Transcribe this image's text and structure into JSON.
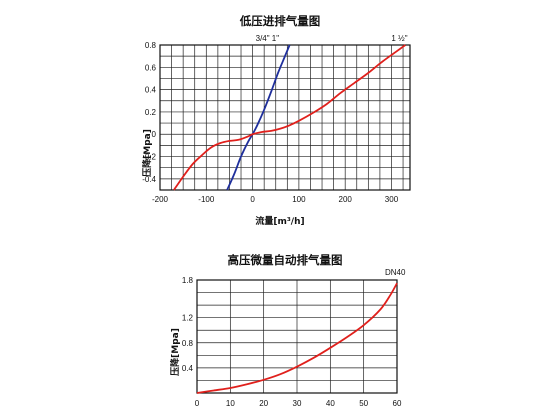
{
  "chart_data": [
    {
      "type": "line",
      "title": "低压进排气量图",
      "xlabel": "流量[m³/h]",
      "ylabel": "压降[Mpa]",
      "xlim": [
        -200,
        340
      ],
      "ylim": [
        -0.5,
        0.8
      ],
      "x_ticks": [
        -200,
        -100,
        0,
        100,
        200,
        300
      ],
      "x_tick_labels": [
        "-200",
        "-100",
        "0",
        "100",
        "200",
        "300"
      ],
      "y_ticks": [
        -0.4,
        -0.2,
        0,
        0.2,
        0.4,
        0.6,
        0.8
      ],
      "y_tick_labels": [
        "-0.4",
        "-0.2",
        "0",
        "0.2",
        "0.4",
        "0.6",
        "0.8"
      ],
      "grid": true,
      "series": [
        {
          "name": "3/4\" 1\"",
          "color": "#1f2f9c",
          "points": [
            [
              -55,
              -0.5
            ],
            [
              -40,
              -0.36
            ],
            [
              -25,
              -0.2
            ],
            [
              -10,
              -0.07
            ],
            [
              0,
              0.0
            ],
            [
              10,
              0.08
            ],
            [
              25,
              0.22
            ],
            [
              40,
              0.38
            ],
            [
              55,
              0.55
            ],
            [
              70,
              0.7
            ],
            [
              80,
              0.8
            ]
          ]
        },
        {
          "name": "1 ½\"",
          "color": "#e0201c",
          "points": [
            [
              -170,
              -0.5
            ],
            [
              -150,
              -0.38
            ],
            [
              -130,
              -0.27
            ],
            [
              -110,
              -0.19
            ],
            [
              -90,
              -0.12
            ],
            [
              -70,
              -0.08
            ],
            [
              -50,
              -0.06
            ],
            [
              -30,
              -0.05
            ],
            [
              -10,
              -0.02
            ],
            [
              0,
              0.0
            ],
            [
              20,
              0.02
            ],
            [
              40,
              0.03
            ],
            [
              60,
              0.05
            ],
            [
              80,
              0.08
            ],
            [
              100,
              0.12
            ],
            [
              130,
              0.19
            ],
            [
              160,
              0.27
            ],
            [
              190,
              0.37
            ],
            [
              220,
              0.46
            ],
            [
              250,
              0.55
            ],
            [
              280,
              0.65
            ],
            [
              310,
              0.74
            ],
            [
              330,
              0.8
            ]
          ]
        }
      ]
    },
    {
      "type": "line",
      "title": "高压微量自动排气量图",
      "xlabel": "",
      "ylabel": "压降[Mpa]",
      "xlim": [
        0,
        60
      ],
      "ylim": [
        0,
        1.8
      ],
      "x_ticks": [
        0,
        10,
        20,
        30,
        40,
        50,
        60
      ],
      "x_tick_labels": [
        "0",
        "10",
        "20",
        "30",
        "40",
        "50",
        "60"
      ],
      "y_ticks": [
        0,
        0.2,
        0.4,
        0.6,
        0.8,
        1.0,
        1.2,
        1.4,
        1.6,
        1.8
      ],
      "y_tick_labels": [
        "",
        "",
        "0.4",
        "",
        "0.8",
        "",
        "1.2",
        "",
        "",
        "1.8"
      ],
      "grid": true,
      "series": [
        {
          "name": "DN40",
          "color": "#e0201c",
          "points": [
            [
              0,
              0.0
            ],
            [
              5,
              0.04
            ],
            [
              10,
              0.08
            ],
            [
              15,
              0.14
            ],
            [
              20,
              0.21
            ],
            [
              25,
              0.3
            ],
            [
              30,
              0.42
            ],
            [
              35,
              0.56
            ],
            [
              40,
              0.72
            ],
            [
              45,
              0.89
            ],
            [
              50,
              1.08
            ],
            [
              55,
              1.33
            ],
            [
              58,
              1.56
            ],
            [
              60,
              1.75
            ]
          ]
        }
      ]
    }
  ]
}
